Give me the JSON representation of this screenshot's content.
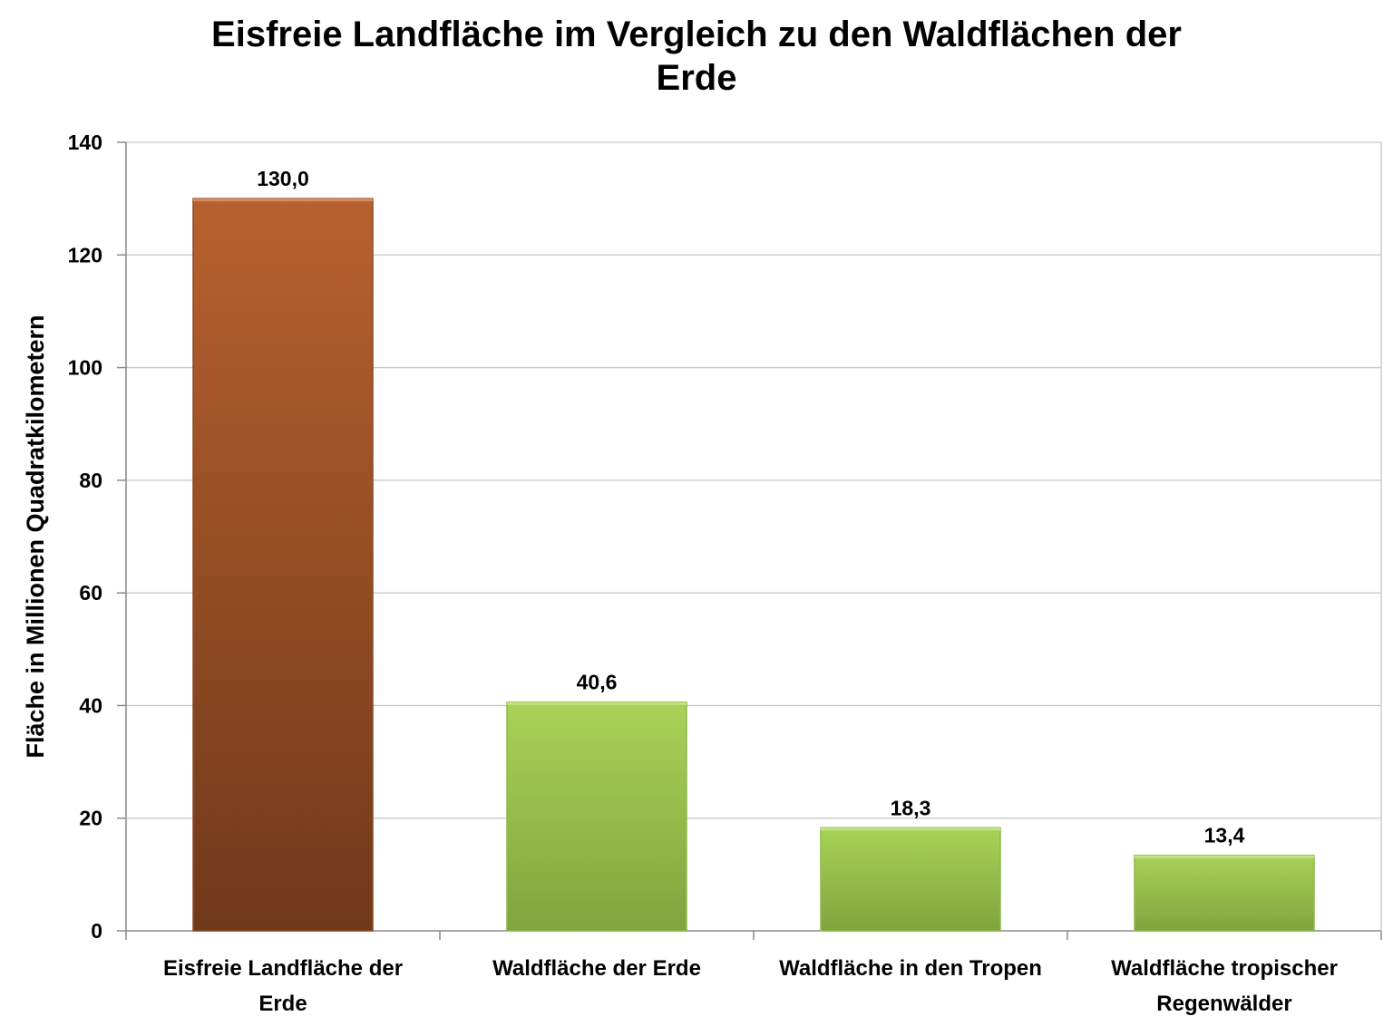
{
  "chart_data": {
    "type": "bar",
    "title_lines": [
      "Eisfreie Landfläche im Vergleich zu den Waldflächen der",
      "Erde"
    ],
    "ylabel": "Fläche in Millionen Quadratkilometern",
    "xlabel": "",
    "ylim": [
      0,
      140
    ],
    "yticks": [
      0,
      20,
      40,
      60,
      80,
      100,
      120,
      140
    ],
    "grid": true,
    "legend": "none",
    "categories": [
      [
        "Eisfreie Landfläche der",
        "Erde"
      ],
      [
        "Waldfläche der Erde"
      ],
      [
        "Waldfläche in den Tropen"
      ],
      [
        "Waldfläche tropischer",
        "Regenwälder"
      ]
    ],
    "values": [
      130.0,
      40.6,
      18.3,
      13.4
    ],
    "value_labels": [
      "130,0",
      "40,6",
      "18,3",
      "13,4"
    ],
    "bar_colors": [
      "brown",
      "green",
      "green",
      "green"
    ]
  },
  "colors": {
    "brown_top": "#b8612f",
    "brown_bottom": "#70391a",
    "green_top": "#a8d357",
    "green_bottom": "#7ea53e",
    "grid": "#c6c6c6",
    "axis": "#8a8a8a"
  }
}
